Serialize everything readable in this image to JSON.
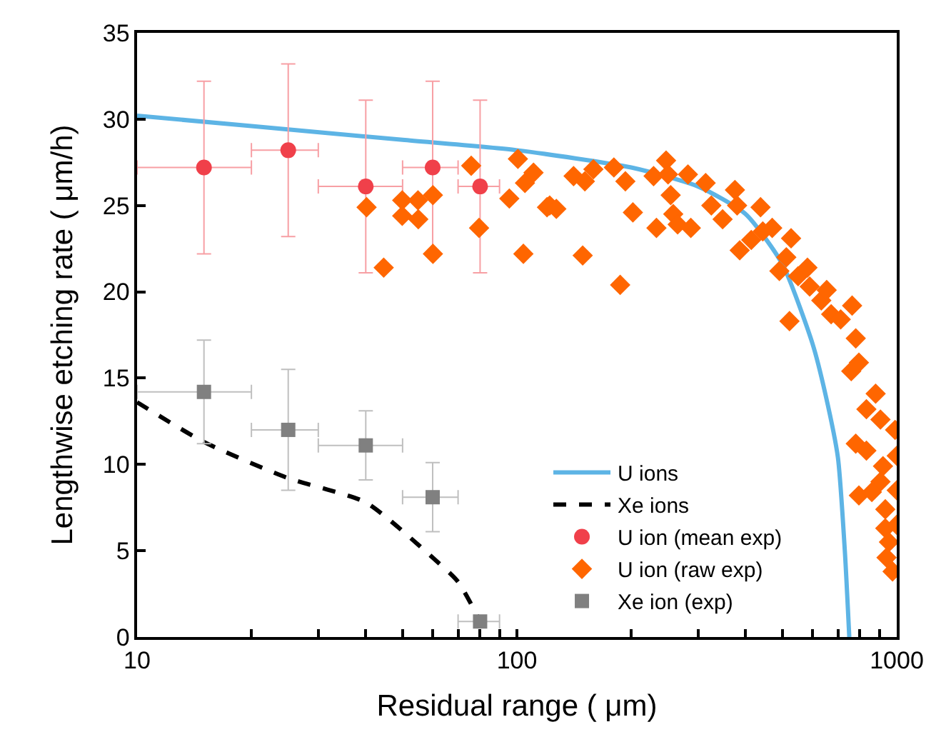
{
  "chart_data": {
    "type": "scatter",
    "xlabel": "Residual range ( μm)",
    "ylabel": "Lengthwise etching rate ( μm/h)",
    "log": "x",
    "xlim": [
      10,
      1000
    ],
    "ylim": [
      0,
      35
    ],
    "xticks": [
      10,
      {
        "value": 20,
        "label": null
      },
      {
        "value": 30,
        "label": null
      },
      {
        "value": 40,
        "label": null
      },
      {
        "value": 50,
        "label": null
      },
      {
        "value": 60,
        "label": null
      },
      {
        "value": 70,
        "label": null
      },
      {
        "value": 80,
        "label": null
      },
      {
        "value": 90,
        "label": null
      },
      100,
      {
        "value": 200,
        "label": null
      },
      {
        "value": 300,
        "label": null
      },
      {
        "value": 400,
        "label": null
      },
      {
        "value": 500,
        "label": null
      },
      {
        "value": 600,
        "label": null
      },
      {
        "value": 700,
        "label": null
      },
      {
        "value": 800,
        "label": null
      },
      {
        "value": 900,
        "label": null
      },
      1000
    ],
    "yticks": [
      0,
      5,
      10,
      15,
      20,
      25,
      30,
      35
    ],
    "grid": false,
    "legend": "bottom right",
    "series": [
      {
        "name": "U ions",
        "type": "line",
        "line_style": "solid",
        "marker": "none",
        "color": "#5db4e5",
        "x": [
          10,
          20,
          50,
          100,
          200,
          300,
          400,
          500,
          600,
          650,
          700,
          730,
          750
        ],
        "values": [
          30.2,
          29.6,
          28.8,
          28.2,
          27.2,
          26.1,
          24.5,
          21.6,
          17,
          14,
          10.4,
          5,
          0
        ]
      },
      {
        "name": "Xe ions",
        "type": "line",
        "line_style": "dashed",
        "marker": "none",
        "color": "#000000",
        "x": [
          10,
          15,
          25,
          40,
          60,
          70,
          84
        ],
        "values": [
          13.6,
          11.3,
          9.2,
          7.8,
          4.6,
          3.2,
          0
        ]
      },
      {
        "name": "U ion (mean exp)",
        "type": "scatter",
        "marker": "circle",
        "color": "#f0404a",
        "x": [
          15,
          25,
          40,
          60,
          80
        ],
        "values": [
          27.2,
          28.2,
          26.1,
          27.2,
          26.1
        ],
        "errors": [
          5,
          5,
          5,
          5,
          5
        ],
        "xerrors": [
          [
            10,
            20
          ],
          [
            20,
            30
          ],
          [
            30,
            50
          ],
          [
            50,
            70
          ],
          [
            70,
            90
          ]
        ]
      },
      {
        "name": "U ion (raw exp)",
        "marker": "diamond",
        "color": "#ff6600",
        "x": [
          40.2,
          44.6,
          49.9,
          49.9,
          54.9,
          55,
          60.1,
          60.1,
          75.8,
          79.5,
          95.5,
          100.6,
          105,
          110.6,
          104,
          120,
          122,
          127,
          141,
          151,
          149,
          159,
          180,
          193,
          202,
          187,
          229,
          233,
          247,
          250,
          254,
          258,
          265,
          282,
          287,
          314,
          325,
          348,
          375,
          380,
          386,
          414,
          438,
          444,
          470,
          491,
          512,
          527,
          522,
          550,
          582,
          590,
          633,
          654,
          672,
          712,
          763,
          780,
          759,
          795,
          880,
          832,
          906,
          780,
          832,
          920,
          906,
          795,
          860,
          933,
          933,
          954,
          940,
          975,
          990,
          1000,
          1000,
          1000
        ],
        "values": [
          24.9,
          21.4,
          25.3,
          24.4,
          25.3,
          24.2,
          25.6,
          22.2,
          27.3,
          23.7,
          25.4,
          27.7,
          26.3,
          26.9,
          22.2,
          24.9,
          25.0,
          24.8,
          26.7,
          26.4,
          22.1,
          27.1,
          27.2,
          26.4,
          24.6,
          20.4,
          26.7,
          23.7,
          27.6,
          26.8,
          25.6,
          24.5,
          23.9,
          26.8,
          23.7,
          26.3,
          25.0,
          24.2,
          25.9,
          25.0,
          22.4,
          23.0,
          24.9,
          23.5,
          23.7,
          21.2,
          22.0,
          23.1,
          18.3,
          20.9,
          21.4,
          20.3,
          19.5,
          20.1,
          18.7,
          18.4,
          19.2,
          17.3,
          15.4,
          15.9,
          14.1,
          13.2,
          12.6,
          11.2,
          10.8,
          9.9,
          9.0,
          8.2,
          8.4,
          7.4,
          6.3,
          5.5,
          4.6,
          3.8,
          12.0,
          10.5,
          8.5,
          6.5
        ]
      },
      {
        "name": "Xe ion (exp)",
        "marker": "square",
        "color": "#808080",
        "x": [
          15,
          25,
          40,
          60,
          80
        ],
        "values": [
          14.2,
          12,
          11.1,
          8.1,
          0.9
        ],
        "errors": [
          3,
          3.5,
          2,
          2,
          null
        ],
        "xerrors": [
          [
            10,
            20
          ],
          [
            20,
            30
          ],
          [
            30,
            50
          ],
          [
            50,
            70
          ],
          [
            70,
            90
          ]
        ]
      }
    ]
  }
}
